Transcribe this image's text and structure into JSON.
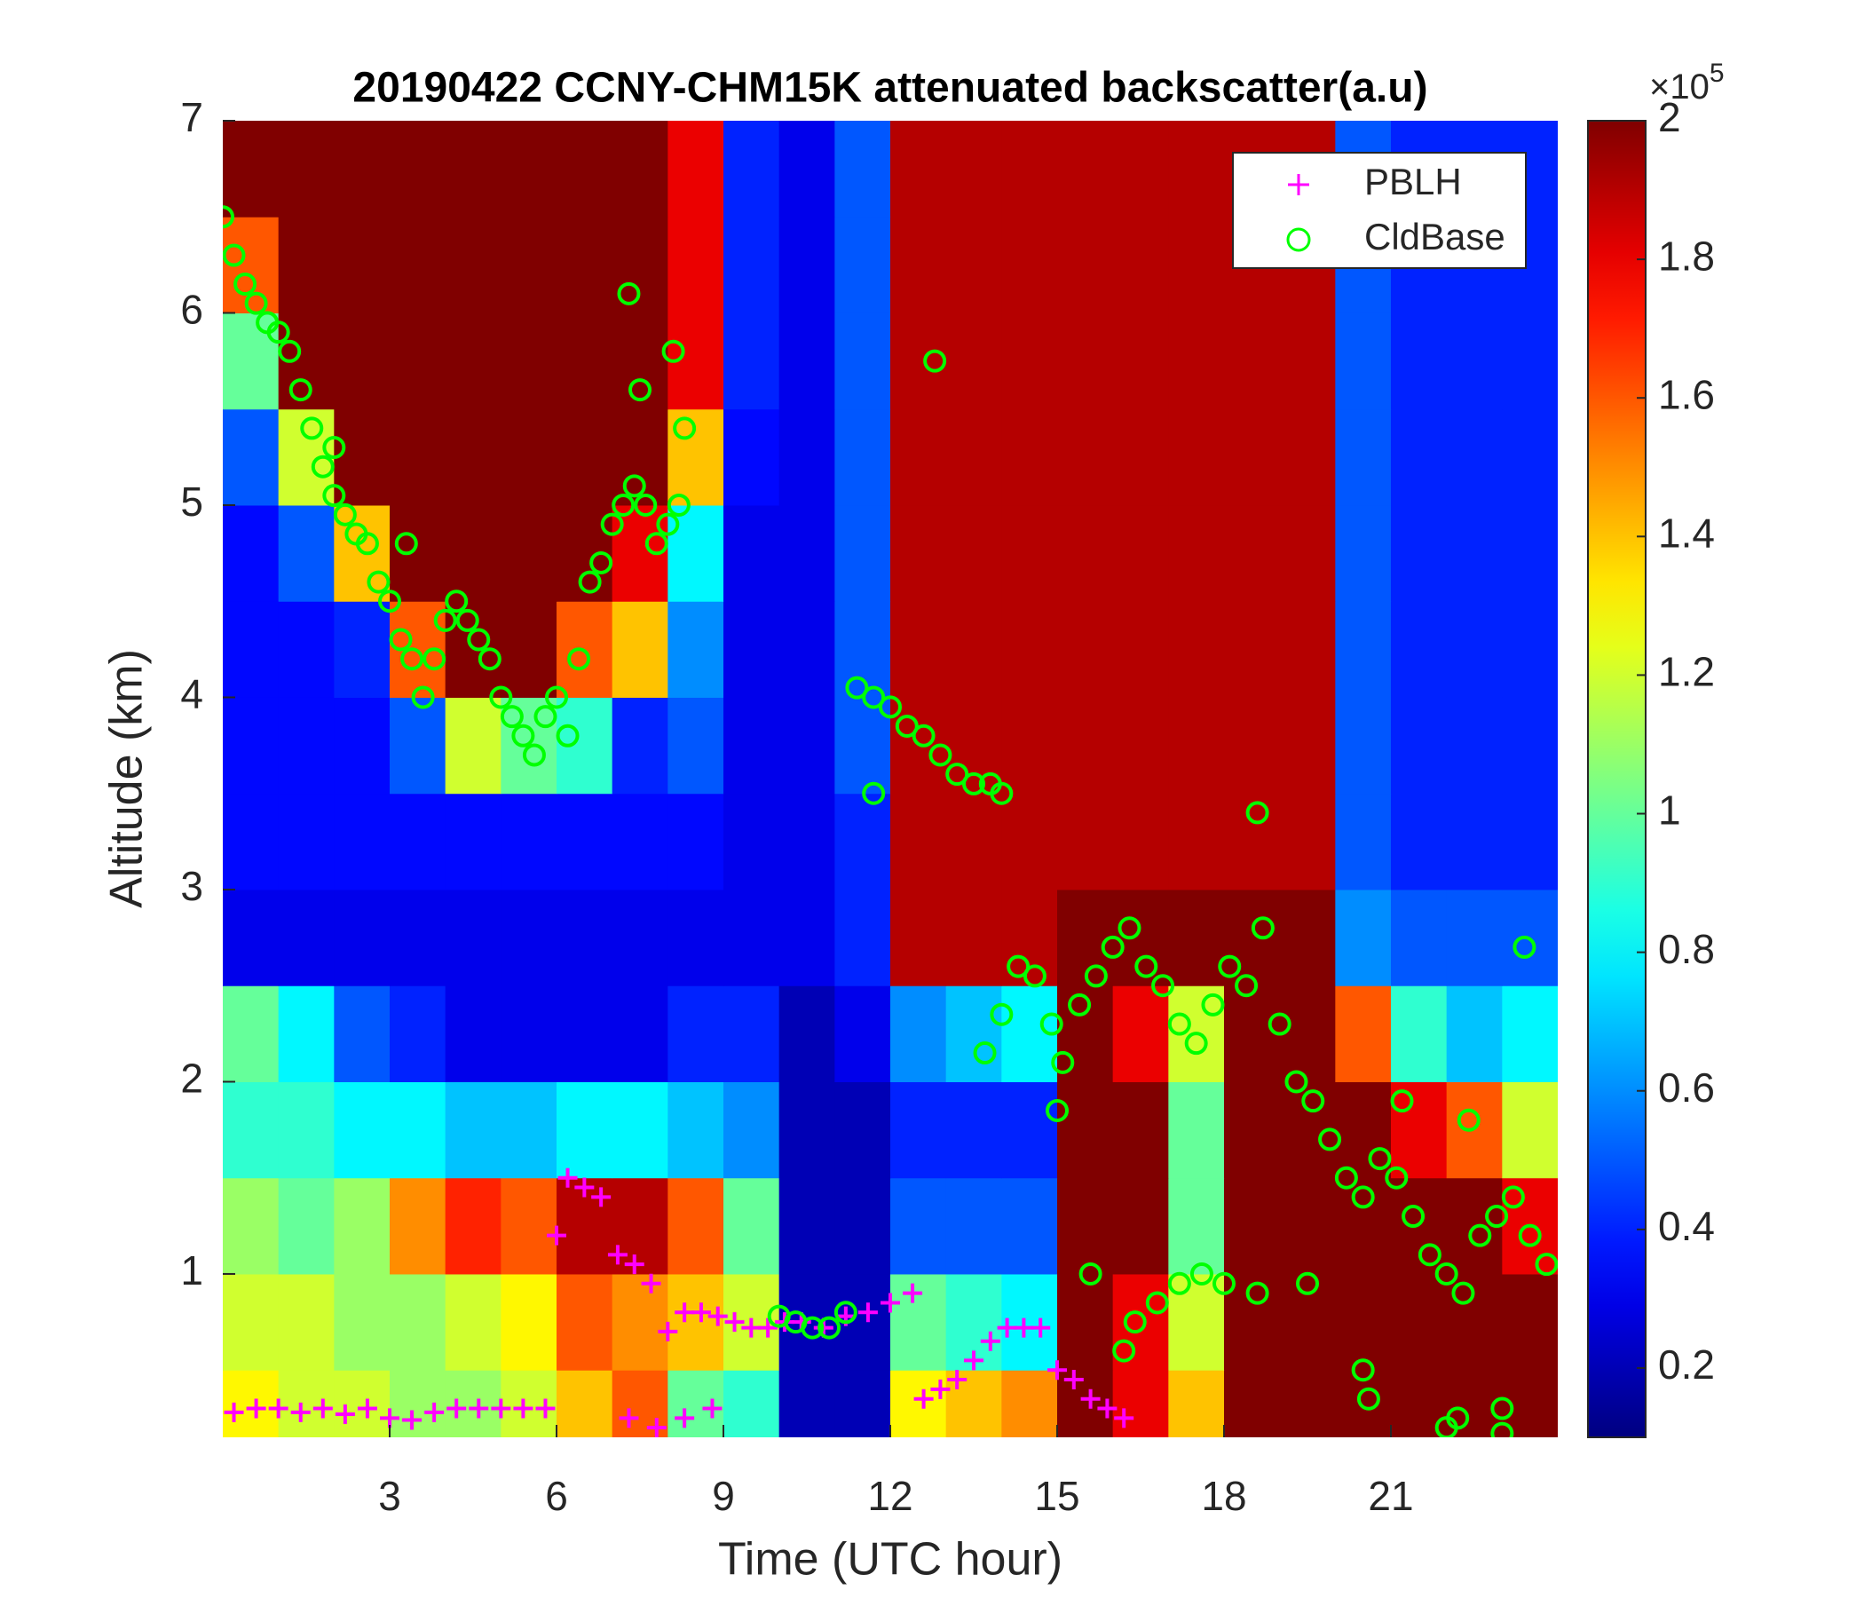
{
  "chart_data": {
    "type": "heatmap",
    "title": "20190422 CCNY-CHM15K attenuated backscatter(a.u)",
    "xlabel": "Time (UTC hour)",
    "ylabel": "Altitude (km)",
    "xlim": [
      0,
      24
    ],
    "xticks": [
      3,
      6,
      9,
      12,
      15,
      18,
      21
    ],
    "ylim": [
      0.15,
      7
    ],
    "yticks": [
      1,
      2,
      3,
      4,
      5,
      6,
      7
    ],
    "x_edges": [
      0,
      1,
      2,
      3,
      4,
      5,
      6,
      7,
      8,
      9,
      10,
      11,
      12,
      13,
      14,
      15,
      16,
      17,
      18,
      19,
      20,
      21,
      22,
      23,
      24
    ],
    "y_edges": [
      0.15,
      0.5,
      1,
      1.5,
      2,
      2.5,
      3,
      3.5,
      4,
      4.5,
      5,
      5.5,
      6,
      6.5,
      7
    ],
    "z": [
      [
        1.3,
        1.2,
        1.2,
        1.1,
        1.1,
        1.2,
        1.4,
        1.6,
        1.0,
        0.9,
        0.2,
        0.2,
        1.3,
        1.4,
        1.5,
        2,
        1.8,
        1.4,
        2,
        2,
        2,
        2,
        2,
        2
      ],
      [
        1.2,
        1.2,
        1.1,
        1.1,
        1.2,
        1.3,
        1.6,
        1.5,
        1.4,
        1.2,
        0.2,
        0.2,
        1.0,
        0.9,
        0.8,
        2,
        1.8,
        1.2,
        2,
        2,
        2,
        2,
        2,
        2
      ],
      [
        1.1,
        1.0,
        1.1,
        1.5,
        1.7,
        1.6,
        1.9,
        1.9,
        1.6,
        1.0,
        0.2,
        0.2,
        0.5,
        0.5,
        0.5,
        2,
        2,
        1.0,
        2,
        2,
        2,
        2,
        2,
        1.8
      ],
      [
        0.9,
        0.9,
        0.8,
        0.8,
        0.7,
        0.7,
        0.8,
        0.8,
        0.7,
        0.6,
        0.2,
        0.2,
        0.4,
        0.4,
        0.4,
        2,
        2,
        1.0,
        2,
        2,
        2,
        1.8,
        1.6,
        1.2
      ],
      [
        1.0,
        0.8,
        0.5,
        0.4,
        0.3,
        0.3,
        0.3,
        0.3,
        0.4,
        0.4,
        0.2,
        0.3,
        0.6,
        0.7,
        0.8,
        2,
        1.8,
        1.2,
        2,
        2,
        1.6,
        0.9,
        0.7,
        0.8
      ],
      [
        0.3,
        0.3,
        0.3,
        0.3,
        0.3,
        0.3,
        0.3,
        0.3,
        0.3,
        0.3,
        0.3,
        0.4,
        1.9,
        1.9,
        1.9,
        2,
        2,
        2,
        2,
        2,
        0.6,
        0.5,
        0.5,
        0.5
      ],
      [
        0.35,
        0.35,
        0.35,
        0.35,
        0.35,
        0.35,
        0.35,
        0.35,
        0.35,
        0.3,
        0.3,
        0.4,
        1.9,
        1.9,
        1.9,
        1.9,
        1.9,
        1.9,
        1.9,
        1.9,
        0.5,
        0.4,
        0.4,
        0.4
      ],
      [
        0.35,
        0.35,
        0.35,
        0.5,
        1.2,
        1.0,
        0.9,
        0.4,
        0.5,
        0.3,
        0.3,
        0.5,
        1.9,
        1.9,
        1.9,
        1.9,
        1.9,
        1.9,
        1.9,
        1.9,
        0.5,
        0.4,
        0.4,
        0.4
      ],
      [
        0.35,
        0.35,
        0.4,
        1.6,
        2,
        2,
        1.6,
        1.4,
        0.6,
        0.3,
        0.3,
        0.5,
        1.9,
        1.9,
        1.9,
        1.9,
        1.9,
        1.9,
        1.9,
        1.9,
        0.5,
        0.4,
        0.4,
        0.4
      ],
      [
        0.35,
        0.5,
        1.4,
        2,
        2,
        2,
        2,
        1.8,
        0.8,
        0.3,
        0.3,
        0.5,
        1.9,
        1.9,
        1.9,
        1.9,
        1.9,
        1.9,
        1.9,
        1.9,
        0.5,
        0.4,
        0.4,
        0.4
      ],
      [
        0.5,
        1.2,
        2,
        2,
        2,
        2,
        2,
        2,
        1.4,
        0.35,
        0.3,
        0.5,
        1.9,
        1.9,
        1.9,
        1.9,
        1.9,
        1.9,
        1.9,
        1.9,
        0.5,
        0.4,
        0.4,
        0.4
      ],
      [
        1.0,
        2,
        2,
        2,
        2,
        2,
        2,
        2,
        1.8,
        0.4,
        0.3,
        0.5,
        1.9,
        1.9,
        1.9,
        1.9,
        1.9,
        1.9,
        1.9,
        1.9,
        0.5,
        0.4,
        0.4,
        0.4
      ],
      [
        1.6,
        2,
        2,
        2,
        2,
        2,
        2,
        2,
        1.8,
        0.4,
        0.3,
        0.5,
        1.9,
        1.9,
        1.9,
        1.9,
        1.9,
        1.9,
        1.9,
        1.9,
        0.5,
        0.4,
        0.4,
        0.4
      ],
      [
        2,
        2,
        2,
        2,
        2,
        2,
        2,
        2,
        1.8,
        0.4,
        0.3,
        0.5,
        1.9,
        1.9,
        1.9,
        1.9,
        1.9,
        1.9,
        1.9,
        1.9,
        0.5,
        0.4,
        0.4,
        0.4
      ]
    ],
    "colorbar": {
      "clim": [
        0.1,
        2
      ],
      "ticks": [
        0.2,
        0.4,
        0.6,
        0.8,
        1,
        1.2,
        1.4,
        1.6,
        1.8,
        2
      ],
      "multiplier": {
        "base": "×10",
        "exponent": "5"
      }
    },
    "legend": "upper right",
    "series": [
      {
        "name": "PBLH",
        "marker": "+",
        "color": "#ff00ff",
        "x": [
          0.2,
          0.6,
          1,
          1.4,
          1.8,
          2.2,
          2.6,
          3,
          3.4,
          3.8,
          4.2,
          4.6,
          5,
          5.4,
          5.8,
          6,
          6.2,
          6.5,
          6.8,
          7.1,
          7.4,
          7.7,
          8,
          8.3,
          8.6,
          8.9,
          9.2,
          9.5,
          9.8,
          10.1,
          10.4,
          10.8,
          11.2,
          11.6,
          12,
          12.4,
          12.6,
          12.9,
          13.2,
          13.5,
          13.8,
          14.1,
          14.4,
          14.7,
          15,
          15.3,
          15.6,
          15.9,
          16.2,
          7.3,
          7.8,
          8.3,
          8.8
        ],
        "values": [
          0.28,
          0.3,
          0.3,
          0.28,
          0.3,
          0.27,
          0.3,
          0.25,
          0.24,
          0.28,
          0.3,
          0.3,
          0.3,
          0.3,
          0.3,
          1.2,
          1.5,
          1.45,
          1.4,
          1.1,
          1.05,
          0.95,
          0.7,
          0.8,
          0.8,
          0.78,
          0.75,
          0.72,
          0.72,
          0.75,
          0.75,
          0.72,
          0.78,
          0.8,
          0.85,
          0.9,
          0.35,
          0.4,
          0.45,
          0.55,
          0.65,
          0.72,
          0.72,
          0.72,
          0.5,
          0.45,
          0.35,
          0.3,
          0.25,
          0.25,
          0.2,
          0.25,
          0.3
        ]
      },
      {
        "name": "CldBase",
        "marker": "o",
        "color": "#00ff00",
        "x": [
          0,
          0.2,
          0.4,
          0.6,
          0.8,
          1,
          1.2,
          1.4,
          1.6,
          1.8,
          2,
          2.2,
          2.4,
          2.6,
          2.8,
          3,
          3.2,
          3.4,
          3.6,
          3.8,
          4,
          4.2,
          4.4,
          4.6,
          4.8,
          5,
          5.2,
          5.4,
          5.6,
          5.8,
          6,
          6.2,
          6.4,
          6.6,
          6.8,
          7,
          7.2,
          7.4,
          7.6,
          7.8,
          8,
          8.2,
          7.3,
          7.5,
          8.1,
          8.3,
          2,
          3.3,
          10,
          10.3,
          10.6,
          10.9,
          11.2,
          11.4,
          11.7,
          12,
          12.3,
          12.6,
          12.9,
          13.2,
          13.5,
          13.8,
          14,
          11.7,
          12.8,
          13.7,
          14,
          14.3,
          14.6,
          14.9,
          15.1,
          15.4,
          15.7,
          16,
          16.3,
          16.6,
          16.9,
          17.2,
          17.5,
          17.8,
          18.1,
          18.4,
          18.6,
          18.7,
          19,
          19.3,
          19.6,
          19.9,
          20.2,
          20.5,
          20.8,
          21.1,
          21.4,
          21.7,
          22,
          22.3,
          22.6,
          22.9,
          23.2,
          23.5,
          23.8,
          15,
          16.4,
          16.8,
          17.2,
          17.6,
          18,
          18.6,
          19.5,
          20.5,
          20.6,
          22,
          22.2,
          23,
          23,
          23.4,
          21.2,
          22.4,
          15.6,
          16.2
        ],
        "values": [
          6.5,
          6.3,
          6.15,
          6.05,
          5.95,
          5.9,
          5.8,
          5.6,
          5.4,
          5.2,
          5.05,
          4.95,
          4.85,
          4.8,
          4.6,
          4.5,
          4.3,
          4.2,
          4,
          4.2,
          4.4,
          4.5,
          4.4,
          4.3,
          4.2,
          4,
          3.9,
          3.8,
          3.7,
          3.9,
          4,
          3.8,
          4.2,
          4.6,
          4.7,
          4.9,
          5,
          5.1,
          5,
          4.8,
          4.9,
          5,
          6.1,
          5.6,
          5.8,
          5.4,
          5.3,
          4.8,
          0.78,
          0.75,
          0.72,
          0.72,
          0.8,
          4.05,
          4,
          3.95,
          3.85,
          3.8,
          3.7,
          3.6,
          3.55,
          3.55,
          3.5,
          3.5,
          5.75,
          2.15,
          2.35,
          2.6,
          2.55,
          2.3,
          2.1,
          2.4,
          2.55,
          2.7,
          2.8,
          2.6,
          2.5,
          2.3,
          2.2,
          2.4,
          2.6,
          2.5,
          3.4,
          2.8,
          2.3,
          2,
          1.9,
          1.7,
          1.5,
          1.4,
          1.6,
          1.5,
          1.3,
          1.1,
          1,
          0.9,
          1.2,
          1.3,
          1.4,
          1.2,
          1.05,
          1.85,
          0.75,
          0.85,
          0.95,
          1,
          0.95,
          0.9,
          0.95,
          0.5,
          0.35,
          0.2,
          0.25,
          0.3,
          0.17,
          2.7,
          1.9,
          1.8,
          1,
          0.6
        ]
      }
    ]
  }
}
